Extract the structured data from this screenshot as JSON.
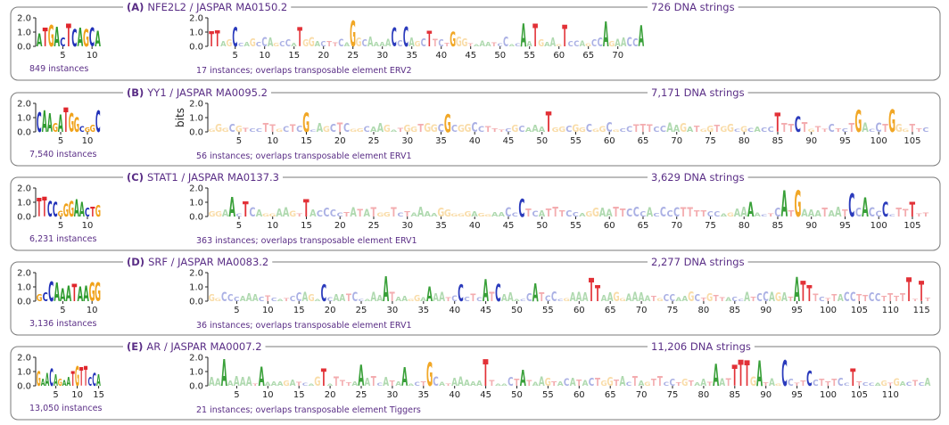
{
  "chart_data": {
    "type": "sequence-logo",
    "ylabel": "bits",
    "ylim": [
      0,
      2
    ],
    "yticks": [
      0.0,
      1.0,
      2.0
    ],
    "panels": [
      {
        "label": "(A)",
        "title": "NFE2L2 / JASPAR MA0150.2",
        "strings": "726 DNA strings",
        "motif": {
          "seq": "ATGACTCAGCA",
          "heights": [
            0.9,
            1.3,
            1.5,
            1.4,
            0.6,
            1.6,
            1.2,
            1.3,
            1.2,
            1.3,
            1.1
          ],
          "xticks": [
            5,
            10
          ],
          "instances": "849 instances"
        },
        "element": {
          "seq": "TAGCAGCAGCATGACTCAGCAAACCAGCTCTGGTAATCACATGAGTCAGCAGACCA",
          "length": 74,
          "xticks": [
            5,
            10,
            15,
            20,
            25,
            30,
            35,
            40,
            45,
            50,
            55,
            60,
            65,
            70
          ],
          "instances": "17 instances; overlaps transposable element ERV2"
        }
      },
      {
        "label": "(B)",
        "title": "YY1 / JASPAR MA0095.2",
        "strings": "7,171 DNA strings",
        "motif": {
          "seq": "CAAGATGGCGGC",
          "heights": [
            1.4,
            1.5,
            1.3,
            0.6,
            1.2,
            1.7,
            1.3,
            1.0,
            0.4,
            0.3,
            0.5,
            1.5
          ],
          "xticks": [
            5,
            10
          ],
          "instances": "7,540 instances"
        },
        "element": {
          "seq": "GGCGTCCTTGCTCGCAGCTCGCAAGATGGTGGCGCGGCCTTCGCAAATGGCGGCGGCGCCTTCCAAGATGGTGGCGCACCTTCTGTTCTCTGACCTGGGTTC",
          "length": 107,
          "xticks": [
            5,
            10,
            15,
            20,
            25,
            30,
            35,
            40,
            45,
            50,
            55,
            60,
            65,
            70,
            75,
            80,
            85,
            90,
            95,
            100,
            105
          ],
          "instances": "56 instances; overlaps transposable element ERV1"
        }
      },
      {
        "label": "(C)",
        "title": "STAT1 / JASPAR MA0137.3",
        "strings": "3,629 DNA strings",
        "motif": {
          "seq": "TTCCGGGAACTG",
          "heights": [
            1.3,
            1.4,
            1.1,
            1.0,
            0.4,
            0.9,
            1.1,
            1.2,
            1.0,
            0.6,
            0.7,
            0.8
          ],
          "xticks": [
            5,
            10
          ],
          "instances": "6,231 instances"
        },
        "element": {
          "seq": "GAACTCAGGAAGTTACCCTATATGGTCTAAAAGGGGAGGAACCCTCATTTCAGGAATTCCCACCCCTTTCCAGAAAACTCATGAATAATCCACCCCTTTTT",
          "length": 107,
          "xticks": [
            5,
            10,
            15,
            20,
            25,
            30,
            35,
            40,
            45,
            50,
            55,
            60,
            65,
            70,
            75,
            80,
            85,
            90,
            95,
            100,
            105
          ],
          "instances": "363 instances; overlaps transposable element ERV1"
        }
      },
      {
        "label": "(D)",
        "title": "SRF / JASPAR MA0083.2",
        "strings": "2,277 DNA strings",
        "motif": {
          "seq": "GCCAAATAAGG",
          "heights": [
            0.5,
            0.6,
            1.4,
            1.3,
            0.9,
            1.1,
            1.2,
            1.0,
            1.1,
            1.3,
            1.3
          ],
          "xticks": [
            5,
            10
          ],
          "instances": "3,136 instances"
        },
        "element": {
          "seq": "GCCCAACTCATCAGACCATCCAAATAAGGAAATCCTCATCAACCATCCGAAATAAGGAAATGCCAGCTGTACCATCAGATATTCTTACTTCCTTTTTTT",
          "length": 116,
          "xticks": [
            5,
            10,
            15,
            20,
            25,
            30,
            35,
            40,
            45,
            50,
            55,
            60,
            65,
            70,
            75,
            80,
            85,
            90,
            95,
            100,
            105,
            110,
            115
          ],
          "instances": "36 instances; overlaps transposable element ERV1"
        }
      },
      {
        "label": "(E)",
        "title": "AR / JASPAR MA0007.2",
        "strings": "11,206 DNA strings",
        "motif": {
          "seq": "GAACAGAATGTTCCA",
          "heights": [
            1.0,
            0.5,
            0.9,
            1.2,
            0.8,
            0.5,
            0.4,
            0.6,
            1.0,
            1.4,
            1.3,
            1.4,
            0.6,
            0.9,
            0.8
          ],
          "xticks": [
            5,
            10,
            15
          ],
          "instances": "13,050 instances"
        },
        "element": {
          "seq": "AAAAAATAAAGATCAGTATTAAATCATAACTGCATAAAATTAACTATAGTACATACTGTACTAGTTCTGTAATAATTTGATAGCCTCCTTTCCTTCAGTGACTCA",
          "length": 116,
          "xticks": [
            5,
            10,
            15,
            20,
            25,
            30,
            35,
            40,
            45,
            50,
            55,
            60,
            65,
            70,
            75,
            80,
            85,
            90,
            95,
            100,
            105,
            110
          ],
          "instances": "21 instances; overlaps transposable element Tiggers"
        }
      }
    ]
  }
}
